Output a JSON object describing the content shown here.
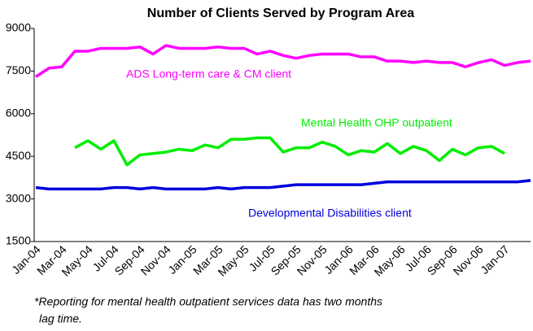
{
  "chart_data": {
    "type": "line",
    "title": "Number of Clients Served by Program Area",
    "categories": [
      "Jan-04",
      null,
      "Mar-04",
      null,
      "May-04",
      null,
      "Jul-04",
      null,
      "Sep-04",
      null,
      "Nov-04",
      null,
      "Jan-05",
      null,
      "Mar-05",
      null,
      "May-05",
      null,
      "Jul-05",
      null,
      "Sep-05",
      null,
      "Nov-05",
      null,
      "Jan-06",
      null,
      "Mar-06",
      null,
      "May-06",
      null,
      "Jul-06",
      null,
      "Sep-06",
      null,
      "Nov-06",
      null,
      "Jan-07",
      null,
      null
    ],
    "series": [
      {
        "name": "ADS Long-term care & CM client",
        "color": "#ff00ff",
        "values": [
          7300,
          7600,
          7650,
          8200,
          8200,
          8300,
          8300,
          8300,
          8350,
          8100,
          8400,
          8300,
          8300,
          8300,
          8350,
          8300,
          8300,
          8100,
          8200,
          8050,
          7950,
          8050,
          8100,
          8100,
          8100,
          8000,
          8000,
          7850,
          7850,
          7800,
          7850,
          7800,
          7800,
          7650,
          7800,
          7900,
          7700,
          7800,
          7850
        ]
      },
      {
        "name": "Mental Health OHP outpatient",
        "color": "#00ee00",
        "values": [
          null,
          null,
          null,
          4800,
          5050,
          4750,
          5050,
          4200,
          4550,
          4600,
          4650,
          4750,
          4700,
          4900,
          4800,
          5100,
          5100,
          5150,
          5150,
          4650,
          4800,
          4800,
          5000,
          4850,
          4550,
          4700,
          4650,
          4950,
          4600,
          4850,
          4700,
          4350,
          4750,
          4550,
          4800,
          4850,
          4600,
          null,
          null
        ]
      },
      {
        "name": "Developmental Disabilities client",
        "color": "#0000dd",
        "values": [
          3400,
          3350,
          3350,
          3350,
          3350,
          3350,
          3400,
          3400,
          3350,
          3400,
          3350,
          3350,
          3350,
          3350,
          3400,
          3350,
          3400,
          3400,
          3400,
          3450,
          3500,
          3500,
          3500,
          3500,
          3500,
          3500,
          3550,
          3600,
          3600,
          3600,
          3600,
          3600,
          3600,
          3600,
          3600,
          3600,
          3600,
          3600,
          3650
        ]
      }
    ],
    "ylim": [
      1500,
      9000
    ],
    "yticks": [
      1500,
      3000,
      4500,
      6000,
      7500,
      9000
    ],
    "grid": false,
    "footnote": [
      "*Reporting for mental health outpatient services data has two months",
      "lag time."
    ]
  }
}
